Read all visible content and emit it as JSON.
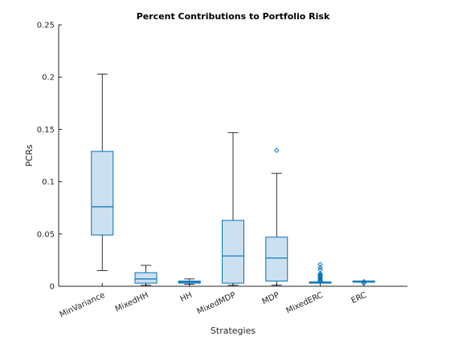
{
  "chart_data": {
    "type": "box",
    "title": "Percent Contributions to Portfolio Risk",
    "xlabel": "Strategies",
    "ylabel": "PCRs",
    "ylim": [
      0,
      0.25
    ],
    "yticks": [
      0,
      0.05,
      0.1,
      0.15,
      0.2,
      0.25
    ],
    "ytick_labels": [
      "0",
      "0.05",
      "0.1",
      "0.15",
      "0.2",
      "0.25"
    ],
    "grid": false,
    "colors": {
      "box_fill": "#cce0f0",
      "box_edge": "#0072bd",
      "whisker": "#000000",
      "outlier": "#0072bd",
      "axis": "#262626"
    },
    "categories": [
      "MinVariance",
      "MixedHH",
      "HH",
      "MixedMDP",
      "MDP",
      "MixedERC",
      "ERC"
    ],
    "boxes": [
      {
        "category": "MinVariance",
        "whisker_low": 0.015,
        "q1": 0.049,
        "median": 0.076,
        "q3": 0.129,
        "whisker_high": 0.203,
        "outliers": []
      },
      {
        "category": "MixedHH",
        "whisker_low": 0.001,
        "q1": 0.003,
        "median": 0.007,
        "q3": 0.013,
        "whisker_high": 0.02,
        "outliers": []
      },
      {
        "category": "HH",
        "whisker_low": 0.002,
        "q1": 0.003,
        "median": 0.004,
        "q3": 0.005,
        "whisker_high": 0.007,
        "outliers": []
      },
      {
        "category": "MixedMDP",
        "whisker_low": 0.001,
        "q1": 0.003,
        "median": 0.029,
        "q3": 0.063,
        "whisker_high": 0.147,
        "outliers": []
      },
      {
        "category": "MDP",
        "whisker_low": 0.001,
        "q1": 0.005,
        "median": 0.027,
        "q3": 0.047,
        "whisker_high": 0.108,
        "outliers": [
          0.13
        ]
      },
      {
        "category": "MixedERC",
        "whisker_low": 0.003,
        "q1": 0.003,
        "median": 0.0035,
        "q3": 0.004,
        "whisker_high": 0.004,
        "outliers": [
          0.005,
          0.006,
          0.007,
          0.008,
          0.009,
          0.01,
          0.011,
          0.012,
          0.016,
          0.018,
          0.021
        ]
      },
      {
        "category": "ERC",
        "whisker_low": 0.004,
        "q1": 0.004,
        "median": 0.004,
        "q3": 0.004,
        "whisker_high": 0.004,
        "outliers": [
          0.003,
          0.0045
        ]
      }
    ]
  }
}
